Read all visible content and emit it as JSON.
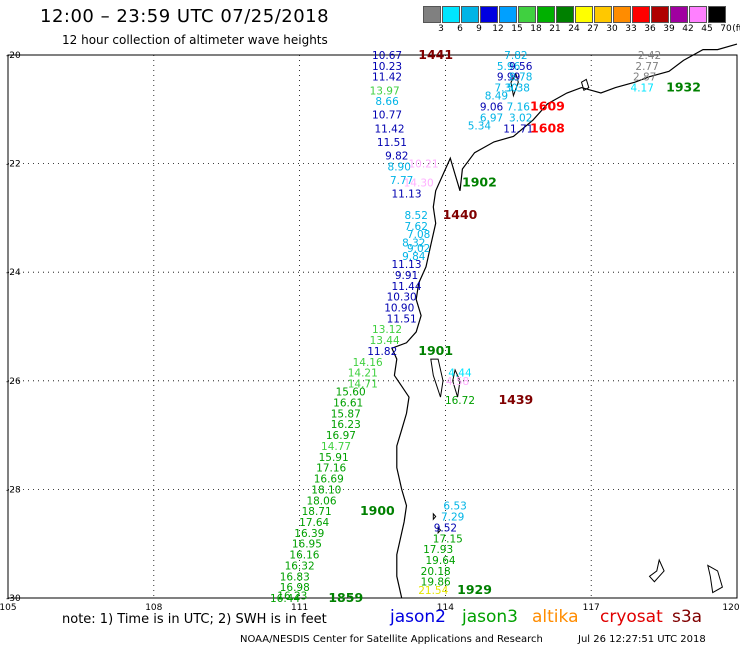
{
  "title": "12:00 – 23:59 UTC 07/25/2018",
  "subtitle": "12 hour collection of altimeter wave heights",
  "color_scale": {
    "labels": [
      "3",
      "6",
      "9",
      "12",
      "15",
      "18",
      "21",
      "24",
      "27",
      "30",
      "33",
      "36",
      "39",
      "42",
      "45",
      "70"
    ],
    "unit": "(ft)",
    "colors": [
      "#808080",
      "#00e5ff",
      "#00b4e6",
      "#0000e0",
      "#00a0ff",
      "#40d040",
      "#00b000",
      "#008000",
      "#ffff00",
      "#ffc800",
      "#ff8c00",
      "#ff0000",
      "#b00000",
      "#a000a0",
      "#ff80ff",
      "#000000"
    ],
    "extra_color": "#ffb0ff"
  },
  "axes": {
    "lat_labels": [
      "-20",
      "-22",
      "-24",
      "-26",
      "-28",
      "-30"
    ],
    "lon_labels": [
      "105",
      "108",
      "111",
      "114",
      "117",
      "120"
    ]
  },
  "observations": [
    {
      "v": "10.67",
      "c": "#0000b0",
      "lat": -20.0,
      "lon": 112.8
    },
    {
      "v": "10.23",
      "c": "#0000b0",
      "lat": -20.2,
      "lon": 112.8
    },
    {
      "v": "11.42",
      "c": "#0000b0",
      "lat": -20.4,
      "lon": 112.8
    },
    {
      "v": "13.97",
      "c": "#40d040",
      "lat": -20.65,
      "lon": 112.75
    },
    {
      "v": "8.66",
      "c": "#00b4e6",
      "lat": -20.85,
      "lon": 112.8
    },
    {
      "v": "10.77",
      "c": "#0000b0",
      "lat": -21.1,
      "lon": 112.8
    },
    {
      "v": "11.42",
      "c": "#0000b0",
      "lat": -21.35,
      "lon": 112.85
    },
    {
      "v": "11.51",
      "c": "#0000b0",
      "lat": -21.6,
      "lon": 112.9
    },
    {
      "v": "9.82",
      "c": "#0000b0",
      "lat": -21.85,
      "lon": 113.0
    },
    {
      "v": "8.90",
      "c": "#00b4e6",
      "lat": -22.05,
      "lon": 113.05
    },
    {
      "v": "7.77",
      "c": "#00b4e6",
      "lat": -22.3,
      "lon": 113.1
    },
    {
      "v": "11.13",
      "c": "#0000b0",
      "lat": -22.55,
      "lon": 113.2
    },
    {
      "v": "8.52",
      "c": "#00b4e6",
      "lat": -22.95,
      "lon": 113.4
    },
    {
      "v": "7.62",
      "c": "#00b4e6",
      "lat": -23.15,
      "lon": 113.4
    },
    {
      "v": "7.08",
      "c": "#00b4e6",
      "lat": -23.3,
      "lon": 113.45
    },
    {
      "v": "8.32",
      "c": "#00b4e6",
      "lat": -23.45,
      "lon": 113.35
    },
    {
      "v": "9.02",
      "c": "#00b4e6",
      "lat": -23.55,
      "lon": 113.45
    },
    {
      "v": "9.84",
      "c": "#00b4e6",
      "lat": -23.7,
      "lon": 113.35
    },
    {
      "v": "11.13",
      "c": "#0000b0",
      "lat": -23.85,
      "lon": 113.2
    },
    {
      "v": "9.91",
      "c": "#0000b0",
      "lat": -24.05,
      "lon": 113.2
    },
    {
      "v": "11.44",
      "c": "#0000b0",
      "lat": -24.25,
      "lon": 113.2
    },
    {
      "v": "10.30",
      "c": "#0000b0",
      "lat": -24.45,
      "lon": 113.1
    },
    {
      "v": "10.90",
      "c": "#0000b0",
      "lat": -24.65,
      "lon": 113.05
    },
    {
      "v": "11.51",
      "c": "#0000b0",
      "lat": -24.85,
      "lon": 113.1
    },
    {
      "v": "13.12",
      "c": "#40d040",
      "lat": -25.05,
      "lon": 112.8
    },
    {
      "v": "13.44",
      "c": "#40d040",
      "lat": -25.25,
      "lon": 112.75
    },
    {
      "v": "11.82",
      "c": "#0000b0",
      "lat": -25.45,
      "lon": 112.7
    },
    {
      "v": "14.16",
      "c": "#40d040",
      "lat": -25.65,
      "lon": 112.4
    },
    {
      "v": "14.21",
      "c": "#40d040",
      "lat": -25.85,
      "lon": 112.3
    },
    {
      "v": "14.71",
      "c": "#40d040",
      "lat": -26.05,
      "lon": 112.3
    },
    {
      "v": "15.60",
      "c": "#00a000",
      "lat": -26.2,
      "lon": 112.05
    },
    {
      "v": "16.61",
      "c": "#00a000",
      "lat": -26.4,
      "lon": 112.0
    },
    {
      "v": "15.87",
      "c": "#00a000",
      "lat": -26.6,
      "lon": 111.95
    },
    {
      "v": "16.23",
      "c": "#00a000",
      "lat": -26.8,
      "lon": 111.95
    },
    {
      "v": "16.97",
      "c": "#00a000",
      "lat": -27.0,
      "lon": 111.85
    },
    {
      "v": "14.77",
      "c": "#40d040",
      "lat": -27.2,
      "lon": 111.75
    },
    {
      "v": "15.91",
      "c": "#00a000",
      "lat": -27.4,
      "lon": 111.7
    },
    {
      "v": "17.16",
      "c": "#00a000",
      "lat": -27.6,
      "lon": 111.65
    },
    {
      "v": "16.69",
      "c": "#00a000",
      "lat": -27.8,
      "lon": 111.6
    },
    {
      "v": "18.10",
      "c": "#00a000",
      "lat": -28.0,
      "lon": 111.55
    },
    {
      "v": "18.06",
      "c": "#00a000",
      "lat": -28.2,
      "lon": 111.45
    },
    {
      "v": "18.71",
      "c": "#00a000",
      "lat": -28.4,
      "lon": 111.35
    },
    {
      "v": "17.64",
      "c": "#00a000",
      "lat": -28.6,
      "lon": 111.3
    },
    {
      "v": "16.39",
      "c": "#00a000",
      "lat": -28.8,
      "lon": 111.2
    },
    {
      "v": "16.95",
      "c": "#00a000",
      "lat": -29.0,
      "lon": 111.15
    },
    {
      "v": "16.16",
      "c": "#00a000",
      "lat": -29.2,
      "lon": 111.1
    },
    {
      "v": "16.32",
      "c": "#00a000",
      "lat": -29.4,
      "lon": 111.0
    },
    {
      "v": "16.83",
      "c": "#00a000",
      "lat": -29.6,
      "lon": 110.9
    },
    {
      "v": "16.98",
      "c": "#00a000",
      "lat": -29.8,
      "lon": 110.9
    },
    {
      "v": "16.23",
      "c": "#00a000",
      "lat": -29.95,
      "lon": 110.85
    },
    {
      "v": "16.44",
      "c": "#00a000",
      "lat": -30.0,
      "lon": 110.7
    },
    {
      "v": "7.82",
      "c": "#00b4e6",
      "lat": -20.0,
      "lon": 115.45
    },
    {
      "v": "5.96",
      "c": "#00b4e6",
      "lat": -20.2,
      "lon": 115.3
    },
    {
      "v": "9.56",
      "c": "#0000b0",
      "lat": -20.2,
      "lon": 115.55
    },
    {
      "v": "9.99",
      "c": "#0000b0",
      "lat": -20.4,
      "lon": 115.3
    },
    {
      "v": "8.78",
      "c": "#00b4e6",
      "lat": -20.4,
      "lon": 115.55
    },
    {
      "v": "7.30",
      "c": "#00b4e6",
      "lat": -20.6,
      "lon": 115.25
    },
    {
      "v": "5.38",
      "c": "#00b4e6",
      "lat": -20.6,
      "lon": 115.5
    },
    {
      "v": "8.49",
      "c": "#00b4e6",
      "lat": -20.75,
      "lon": 115.05
    },
    {
      "v": "9.06",
      "c": "#0000b0",
      "lat": -20.95,
      "lon": 114.95
    },
    {
      "v": "7.16",
      "c": "#00b4e6",
      "lat": -20.95,
      "lon": 115.5
    },
    {
      "v": "6.97",
      "c": "#00b4e6",
      "lat": -21.15,
      "lon": 114.95
    },
    {
      "v": "3.02",
      "c": "#00b4e6",
      "lat": -21.15,
      "lon": 115.55
    },
    {
      "v": "5.34",
      "c": "#00b4e6",
      "lat": -21.3,
      "lon": 114.7
    },
    {
      "v": "11.71",
      "c": "#0000b0",
      "lat": -21.35,
      "lon": 115.5
    },
    {
      "v": "4.44",
      "c": "#00e5ff",
      "lat": -25.85,
      "lon": 114.3
    },
    {
      "v": "4.58",
      "c": "#ffb0ff",
      "lat": -26.0,
      "lon": 114.25
    },
    {
      "v": "16.72",
      "c": "#00a000",
      "lat": -26.35,
      "lon": 114.3
    },
    {
      "v": "6.53",
      "c": "#00b4e6",
      "lat": -28.3,
      "lon": 114.2
    },
    {
      "v": "7.29",
      "c": "#00b4e6",
      "lat": -28.5,
      "lon": 114.15
    },
    {
      "v": "9.52",
      "c": "#0000b0",
      "lat": -28.7,
      "lon": 114.0
    },
    {
      "v": "17.15",
      "c": "#00a000",
      "lat": -28.9,
      "lon": 114.05
    },
    {
      "v": "17.93",
      "c": "#00a000",
      "lat": -29.1,
      "lon": 113.85
    },
    {
      "v": "19.64",
      "c": "#00a000",
      "lat": -29.3,
      "lon": 113.9
    },
    {
      "v": "20.18",
      "c": "#00a000",
      "lat": -29.5,
      "lon": 113.8
    },
    {
      "v": "19.86",
      "c": "#00a000",
      "lat": -29.7,
      "lon": 113.8
    },
    {
      "v": "21.54",
      "c": "#e6e600",
      "lat": -29.85,
      "lon": 113.75
    },
    {
      "v": "2.42",
      "c": "#808080",
      "lat": -20.0,
      "lon": 118.2
    },
    {
      "v": "2.77",
      "c": "#808080",
      "lat": -20.2,
      "lon": 118.15
    },
    {
      "v": "2.87",
      "c": "#808080",
      "lat": -20.4,
      "lon": 118.1
    },
    {
      "v": "4.17",
      "c": "#00e5ff",
      "lat": -20.6,
      "lon": 118.05
    },
    {
      "v": "10.21",
      "c": "#ffb0ff",
      "lat": -22.0,
      "lon": 113.55
    },
    {
      "v": "14.30",
      "c": "#ffb0ff",
      "lat": -22.35,
      "lon": 113.45
    }
  ],
  "times": [
    {
      "t": "1441",
      "c": "#800000",
      "lat": -20.0,
      "lon": 113.8
    },
    {
      "t": "1609",
      "c": "#ff0000",
      "lat": -20.95,
      "lon": 116.1
    },
    {
      "t": "1608",
      "c": "#ff0000",
      "lat": -21.35,
      "lon": 116.1
    },
    {
      "t": "1932",
      "c": "#008000",
      "lat": -20.6,
      "lon": 118.9
    },
    {
      "t": "1902",
      "c": "#008000",
      "lat": -22.35,
      "lon": 114.7
    },
    {
      "t": "1440",
      "c": "#800000",
      "lat": -22.95,
      "lon": 114.3
    },
    {
      "t": "1901",
      "c": "#008000",
      "lat": -25.45,
      "lon": 113.8
    },
    {
      "t": "1439",
      "c": "#800000",
      "lat": -26.35,
      "lon": 115.45
    },
    {
      "t": "1900",
      "c": "#008000",
      "lat": -28.4,
      "lon": 112.6
    },
    {
      "t": "1859",
      "c": "#008000",
      "lat": -30.0,
      "lon": 111.95
    },
    {
      "t": "1929",
      "c": "#008000",
      "lat": -29.85,
      "lon": 114.6
    }
  ],
  "footer": {
    "note": "note: 1) Time is in UTC; 2) SWH is in feet",
    "satellites": [
      {
        "name": "jason2",
        "color": "#0000e0"
      },
      {
        "name": "jason3",
        "color": "#00a000"
      },
      {
        "name": "altika",
        "color": "#ff8c00"
      },
      {
        "name": "cryosat",
        "color": "#e00000"
      },
      {
        "name": "s3a",
        "color": "#800000"
      }
    ],
    "credit": "NOAA/NESDIS Center for Satellite Applications and Research",
    "timestamp": "Jul 26 12:27:51 UTC 2018"
  }
}
